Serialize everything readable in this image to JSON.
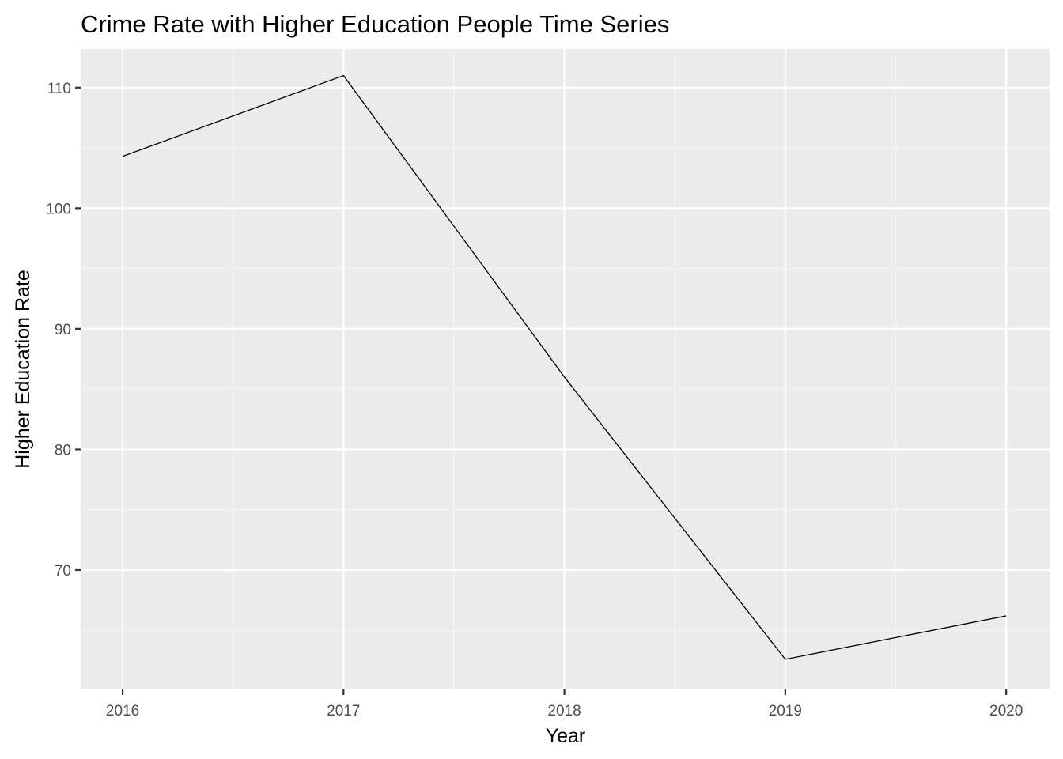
{
  "chart_data": {
    "type": "line",
    "title": "Crime Rate with Higher Education People Time Series",
    "xlabel": "Year",
    "ylabel": "Higher Education Rate",
    "x": [
      2016,
      2017,
      2018,
      2019,
      2020
    ],
    "x_tick_labels": [
      "2016",
      "2017",
      "2018",
      "2019",
      "2020"
    ],
    "y_ticks": [
      70,
      80,
      90,
      100,
      110
    ],
    "y_tick_labels": [
      "70",
      "80",
      "90",
      "100",
      "110"
    ],
    "xlim": [
      2015.81,
      2020.2
    ],
    "ylim": [
      60.1,
      113.2
    ],
    "series": [
      {
        "name": "Higher Education Rate",
        "values": [
          104.3,
          111.0,
          86.0,
          62.6,
          66.2
        ]
      }
    ],
    "grid": true,
    "legend": "none",
    "colors": {
      "panel_background": "#ebebeb",
      "grid_major": "#ffffff",
      "grid_minor": "#f5f5f5",
      "line": "#000000",
      "tick_text": "#4d4d4d",
      "axis_tick": "#333333"
    }
  }
}
